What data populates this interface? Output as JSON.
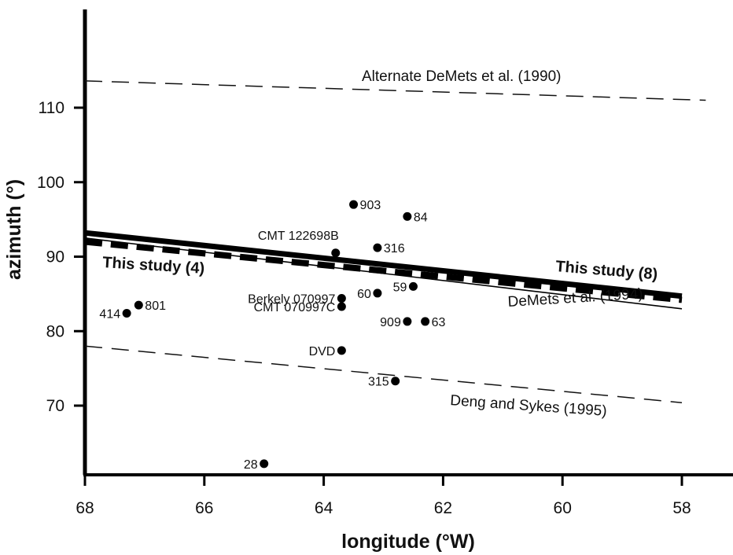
{
  "chart_data": {
    "type": "scatter",
    "title": "",
    "xlabel": "longitude  (°W)",
    "ylabel": "azimuth  (°)",
    "xlim": [
      68,
      58
    ],
    "ylim": [
      60,
      118
    ],
    "x_ticks": [
      68,
      66,
      64,
      62,
      60,
      58
    ],
    "y_ticks": [
      70,
      80,
      90,
      100,
      110
    ],
    "grid": false,
    "points": [
      {
        "label": "903",
        "x": 63.5,
        "y": 97.0,
        "label_side": "right"
      },
      {
        "label": "84",
        "x": 62.6,
        "y": 95.4,
        "label_side": "right"
      },
      {
        "label": "CMT 122698B",
        "x": 63.8,
        "y": 90.5,
        "label_side": "above-left"
      },
      {
        "label": "316",
        "x": 63.1,
        "y": 91.2,
        "label_side": "right"
      },
      {
        "label": "Berkely 070997",
        "x": 63.7,
        "y": 84.4,
        "label_side": "left"
      },
      {
        "label": "CMT 070997C",
        "x": 63.7,
        "y": 83.3,
        "label_side": "left"
      },
      {
        "label": "60",
        "x": 63.1,
        "y": 85.1,
        "label_side": "left"
      },
      {
        "label": "59",
        "x": 62.5,
        "y": 86.0,
        "label_side": "left"
      },
      {
        "label": "909",
        "x": 62.6,
        "y": 81.3,
        "label_side": "left"
      },
      {
        "label": "63",
        "x": 62.3,
        "y": 81.3,
        "label_side": "right"
      },
      {
        "label": "414",
        "x": 67.3,
        "y": 82.4,
        "label_side": "left"
      },
      {
        "label": "801",
        "x": 67.1,
        "y": 83.5,
        "label_side": "right"
      },
      {
        "label": "DVD",
        "x": 63.7,
        "y": 77.4,
        "label_side": "left"
      },
      {
        "label": "315",
        "x": 62.8,
        "y": 73.3,
        "label_side": "left"
      },
      {
        "label": "28",
        "x": 65.0,
        "y": 62.2,
        "label_side": "left"
      }
    ],
    "lines": [
      {
        "name": "Alternate DeMets et al. (1990)",
        "style": "dashed-thin",
        "x": [
          68,
          57.6
        ],
        "y": [
          113.6,
          111.0
        ]
      },
      {
        "name": "This study (8)",
        "style": "solid-thick",
        "x": [
          68,
          58
        ],
        "y": [
          93.2,
          84.7
        ]
      },
      {
        "name": "This study (4)",
        "style": "dashed-thick",
        "x": [
          68,
          58
        ],
        "y": [
          92.0,
          84.2
        ]
      },
      {
        "name": "DeMets et al. (1994)",
        "style": "solid-thin",
        "x": [
          68,
          58
        ],
        "y": [
          92.5,
          83.0
        ]
      },
      {
        "name": "Deng and Sykes (1995)",
        "style": "dashed-thin",
        "x": [
          68,
          58
        ],
        "y": [
          78.0,
          70.4
        ]
      }
    ],
    "line_labels": [
      {
        "text": "Alternate DeMets et al. (1990)",
        "line": 0
      },
      {
        "text": "This study (8)",
        "line": 1
      },
      {
        "text": "This  study  (4)",
        "line": 2
      },
      {
        "text": "DeMets et al. (1994)",
        "line": 3
      },
      {
        "text": "Deng and Sykes (1995)",
        "line": 4
      }
    ]
  }
}
